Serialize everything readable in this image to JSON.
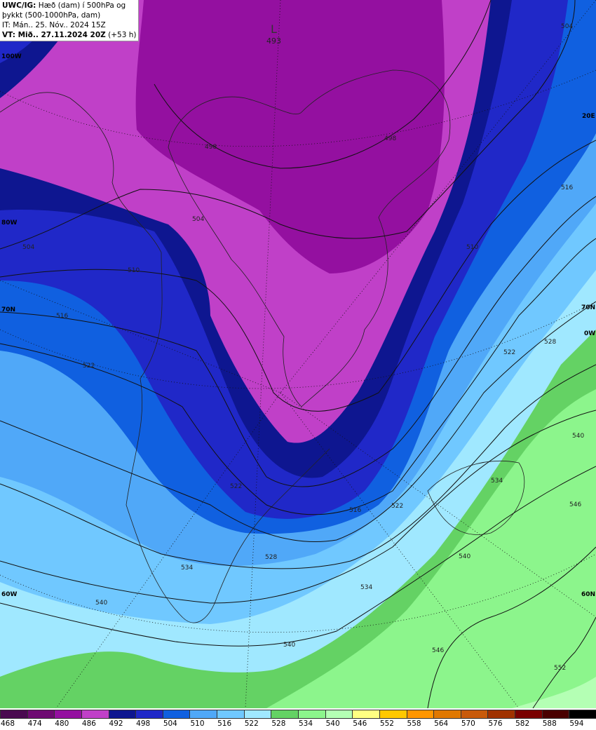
{
  "header": {
    "line1_bold": "UWC/IG:",
    "line1": " Hæð (dam) í 500hPa og",
    "line2": "þykkt (500-1000hPa, dam)",
    "line3": "IT: Mán.. 25. Nóv.. 2024 15Z",
    "line4_bold": "VT: Mið.. 27.11.2024 20Z",
    "line4": " (+53 h)"
  },
  "low": {
    "symbol": "L",
    "value": "493"
  },
  "contour_labels": [
    "498",
    "504",
    "510",
    "516",
    "522",
    "528",
    "534",
    "540",
    "546",
    "552"
  ],
  "geo_labels": {
    "lon100w": "100W",
    "lat80w": "80W",
    "lat70n_left": "70N",
    "lon60w": "60W",
    "lon20e": "20E",
    "lat70n_right": "70N",
    "lon0w": "0W",
    "lat60n": "60N"
  },
  "legend": {
    "colors": [
      "#4a0a50",
      "#6e0a72",
      "#9410a0",
      "#c040c8",
      "#0e1690",
      "#2028c8",
      "#1060e0",
      "#50a8f8",
      "#70c8ff",
      "#a0e8ff",
      "#64d264",
      "#8cf58c",
      "#b4ffb4",
      "#ffff82",
      "#ffc800",
      "#ff9600",
      "#e07800",
      "#c85a0a",
      "#a03200",
      "#7a0000",
      "#4a0000",
      "#000000"
    ],
    "labels": [
      "468",
      "474",
      "480",
      "486",
      "492",
      "498",
      "504",
      "510",
      "516",
      "522",
      "528",
      "534",
      "540",
      "546",
      "552",
      "558",
      "564",
      "570",
      "576",
      "582",
      "588",
      "594"
    ]
  }
}
